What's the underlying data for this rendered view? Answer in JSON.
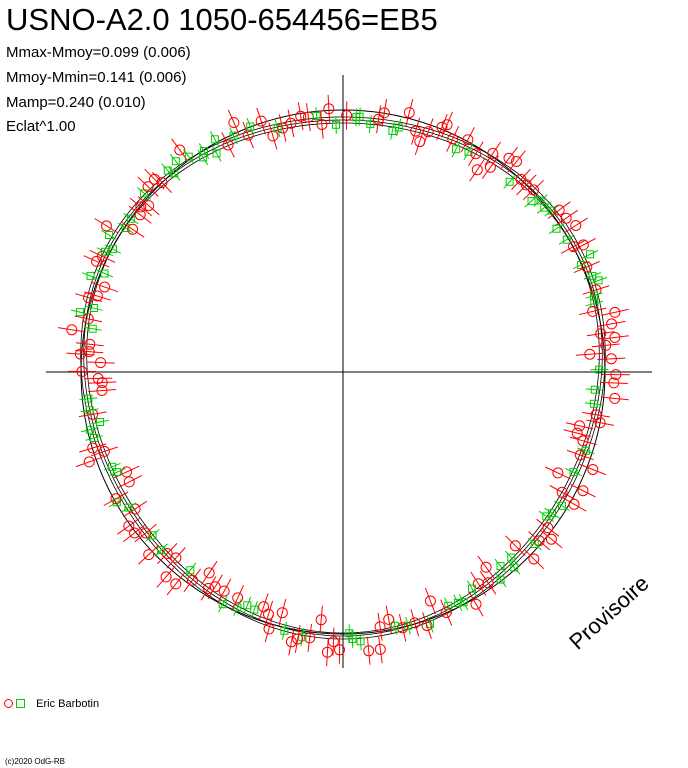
{
  "title": "USNO-A2.0 1050-654456=EB5",
  "stats": [
    "Mmax-Mmoy=0.099 (0.006)",
    "Mmoy-Mmin=0.141 (0.006)",
    "Mamp=0.240 (0.010)",
    "Eclat^1.00"
  ],
  "watermark": "Provisoire",
  "legend": {
    "observer": "Eric Barbotin"
  },
  "copyright": "(c)2020 OdG-RB",
  "colors": {
    "series_a": "#ff0000",
    "series_b": "#00cc00",
    "axes": "#000000"
  },
  "chart_data": {
    "type": "scatter",
    "projection": "polar",
    "mag_max": 0.099,
    "mag_min": -0.141,
    "series": [
      {
        "name": "Eric Barbotin",
        "marker": "circle",
        "color": "#ff0000"
      },
      {
        "marker": "square",
        "color": "#00cc00"
      }
    ]
  }
}
